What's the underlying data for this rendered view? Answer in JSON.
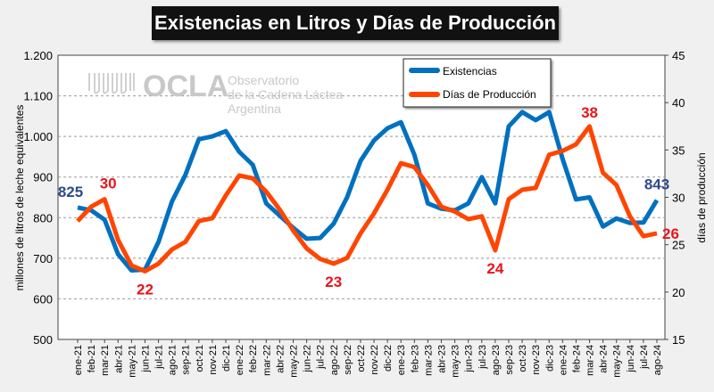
{
  "chart_data": {
    "type": "line",
    "title": "Existencias en Litros y Días de Producción",
    "ylabel": "millones de litros de leche equivalentes",
    "y2label": "días de producción",
    "ylim": [
      500,
      1200
    ],
    "y2lim": [
      15,
      45
    ],
    "yticks": [
      "500",
      "600",
      "700",
      "800",
      "900",
      "1.000",
      "1.100",
      "1.200"
    ],
    "y2ticks": [
      "15",
      "20",
      "25",
      "30",
      "35",
      "40",
      "45"
    ],
    "grid": true,
    "legend_position": "top-center",
    "watermark": [
      "OCLA",
      "Observatorio",
      "de la Cadena Láctea",
      "Argentina"
    ],
    "categories": [
      "ene-21",
      "feb-21",
      "mar-21",
      "abr-21",
      "may-21",
      "jun-21",
      "jul-21",
      "ago-21",
      "sep-21",
      "oct-21",
      "nov-21",
      "dic-21",
      "ene-22",
      "feb-22",
      "mar-22",
      "abr-22",
      "may-22",
      "jun-22",
      "jul-22",
      "ago-22",
      "sep-22",
      "oct-22",
      "nov-22",
      "dic-22",
      "ene-23",
      "feb-23",
      "mar-23",
      "abr-23",
      "may-23",
      "jun-23",
      "jul-23",
      "ago-23",
      "sep-23",
      "oct-23",
      "nov-23",
      "dic-23",
      "ene-24",
      "feb-24",
      "mar-24",
      "abr-24",
      "may-24",
      "jun-24",
      "jul-24",
      "ago-24"
    ],
    "series": [
      {
        "name": "Existencias",
        "axis": "left",
        "color": "#0070c0",
        "values": [
          825,
          818,
          795,
          710,
          670,
          672,
          740,
          840,
          905,
          993,
          1000,
          1013,
          962,
          930,
          835,
          805,
          775,
          748,
          750,
          785,
          850,
          940,
          990,
          1020,
          1035,
          955,
          835,
          822,
          818,
          835,
          900,
          835,
          1025,
          1060,
          1040,
          1060,
          945,
          845,
          850,
          778,
          798,
          787,
          788,
          843
        ]
      },
      {
        "name": "Días de Producción",
        "axis": "right",
        "color": "#ff4500",
        "values": [
          27.5,
          29,
          29.8,
          25.5,
          22.8,
          22.2,
          23,
          24.5,
          25.3,
          27.5,
          27.8,
          30.2,
          32.3,
          32,
          30.6,
          28.7,
          26.5,
          24.6,
          23.5,
          23,
          23.6,
          26.2,
          28.3,
          30.8,
          33.6,
          33.2,
          31.3,
          29,
          28.5,
          27.7,
          28,
          24.4,
          29.8,
          30.8,
          31,
          34.5,
          34.9,
          35.6,
          37.5,
          32.6,
          31.3,
          28,
          25.9,
          26.2
        ]
      }
    ],
    "annotations": [
      {
        "series": 0,
        "index": 0,
        "text": "825",
        "color": "#2e4a8c"
      },
      {
        "series": 0,
        "index": 43,
        "text": "843",
        "color": "#2e4a8c"
      },
      {
        "series": 1,
        "index": 2,
        "text": "30",
        "color": "#e8141b"
      },
      {
        "series": 1,
        "index": 5,
        "text": "22",
        "color": "#e8141b"
      },
      {
        "series": 1,
        "index": 19,
        "text": "23",
        "color": "#e8141b"
      },
      {
        "series": 1,
        "index": 31,
        "text": "24",
        "color": "#e8141b"
      },
      {
        "series": 1,
        "index": 38,
        "text": "38",
        "color": "#e8141b"
      },
      {
        "series": 1,
        "index": 43,
        "text": "26",
        "color": "#e8141b"
      }
    ]
  }
}
